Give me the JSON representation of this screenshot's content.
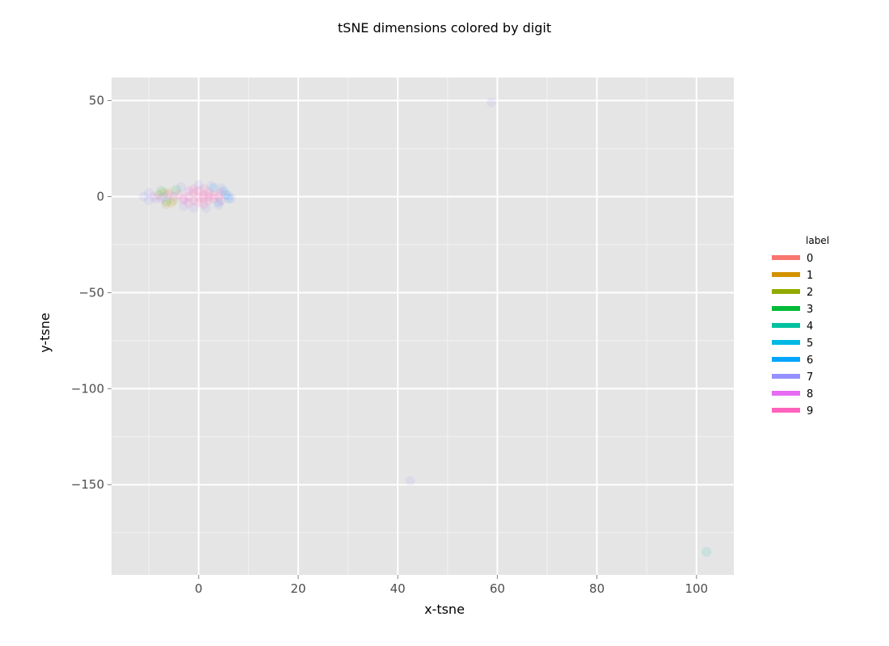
{
  "chart_data": {
    "type": "scatter",
    "title": "tSNE dimensions colored by digit",
    "xlabel": "x-tsne",
    "ylabel": "y-tsne",
    "xlim": [
      -17.5,
      107.5
    ],
    "ylim": [
      -197,
      62
    ],
    "x_ticks": [
      0,
      20,
      40,
      60,
      80,
      100
    ],
    "y_ticks": [
      50,
      0,
      -50,
      -100,
      -150
    ],
    "x_tick_labels": [
      "0",
      "20",
      "40",
      "60",
      "80",
      "100"
    ],
    "y_tick_labels": [
      "50",
      "0",
      "−50",
      "−100",
      "−150"
    ],
    "grid": true,
    "legend": {
      "title": "label",
      "position": "right",
      "entries": [
        {
          "label": "0",
          "color": "#f8766d"
        },
        {
          "label": "1",
          "color": "#d39200"
        },
        {
          "label": "2",
          "color": "#93aa00"
        },
        {
          "label": "3",
          "color": "#00ba38"
        },
        {
          "label": "4",
          "color": "#00c19f"
        },
        {
          "label": "5",
          "color": "#00b9e3"
        },
        {
          "label": "6",
          "color": "#00a5ff"
        },
        {
          "label": "7",
          "color": "#9590ff"
        },
        {
          "label": "8",
          "color": "#e76bf3"
        },
        {
          "label": "9",
          "color": "#ff62bc"
        }
      ]
    },
    "series": [
      {
        "name": "1",
        "color": "#d39200",
        "points": [
          [
            -6.5,
            -4
          ],
          [
            -5.5,
            -3
          ],
          [
            -6,
            2
          ]
        ]
      },
      {
        "name": "2",
        "color": "#93aa00",
        "points": [
          [
            -7,
            2
          ],
          [
            -5,
            -2
          ],
          [
            -8,
            1
          ]
        ]
      },
      {
        "name": "3",
        "color": "#00ba38",
        "points": [
          [
            -7.5,
            3
          ],
          [
            -4.5,
            3.5
          ],
          [
            -6.5,
            -2.5
          ]
        ]
      },
      {
        "name": "4",
        "color": "#00c19f",
        "points": [
          [
            102,
            -185
          ]
        ]
      },
      {
        "name": "6",
        "color": "#00a5ff",
        "points": [
          [
            4,
            -3
          ],
          [
            5.5,
            1
          ],
          [
            6,
            -1
          ],
          [
            5,
            3
          ],
          [
            3,
            4.5
          ]
        ]
      },
      {
        "name": "7",
        "color": "#9590ff",
        "points": [
          [
            -11,
            0
          ],
          [
            -10,
            2
          ],
          [
            -10,
            -2
          ],
          [
            -8.5,
            -1
          ],
          [
            -7,
            0
          ],
          [
            -3.5,
            5
          ],
          [
            -3,
            -5
          ],
          [
            -1,
            -6
          ],
          [
            0,
            6
          ],
          [
            1.5,
            -6
          ],
          [
            2.5,
            5.5
          ],
          [
            4,
            -4.5
          ],
          [
            4.5,
            4.5
          ],
          [
            6,
            0.5
          ],
          [
            6.5,
            -1
          ],
          [
            58.8,
            49
          ],
          [
            42.5,
            -148
          ]
        ]
      },
      {
        "name": "8",
        "color": "#e76bf3",
        "points": [
          [
            -9,
            0
          ],
          [
            -7.5,
            -1
          ],
          [
            -6,
            1
          ],
          [
            -5,
            0
          ],
          [
            -3,
            -2
          ],
          [
            -2,
            3
          ]
        ]
      },
      {
        "name": "9",
        "color": "#ff62bc",
        "points": [
          [
            -4,
            1
          ],
          [
            -3,
            -1
          ],
          [
            -2,
            0
          ],
          [
            -1,
            2
          ],
          [
            -1,
            -2
          ],
          [
            0,
            0
          ],
          [
            0,
            3
          ],
          [
            0,
            -3
          ],
          [
            1,
            1
          ],
          [
            1,
            -1
          ],
          [
            2,
            2
          ],
          [
            2,
            -2
          ],
          [
            2,
            0
          ],
          [
            3,
            1
          ],
          [
            3,
            -1
          ],
          [
            4,
            0
          ],
          [
            1,
            4
          ],
          [
            -1,
            4
          ],
          [
            -2,
            -3.5
          ],
          [
            1,
            -4
          ],
          [
            4.5,
            2
          ],
          [
            4.5,
            -2
          ]
        ]
      }
    ]
  }
}
